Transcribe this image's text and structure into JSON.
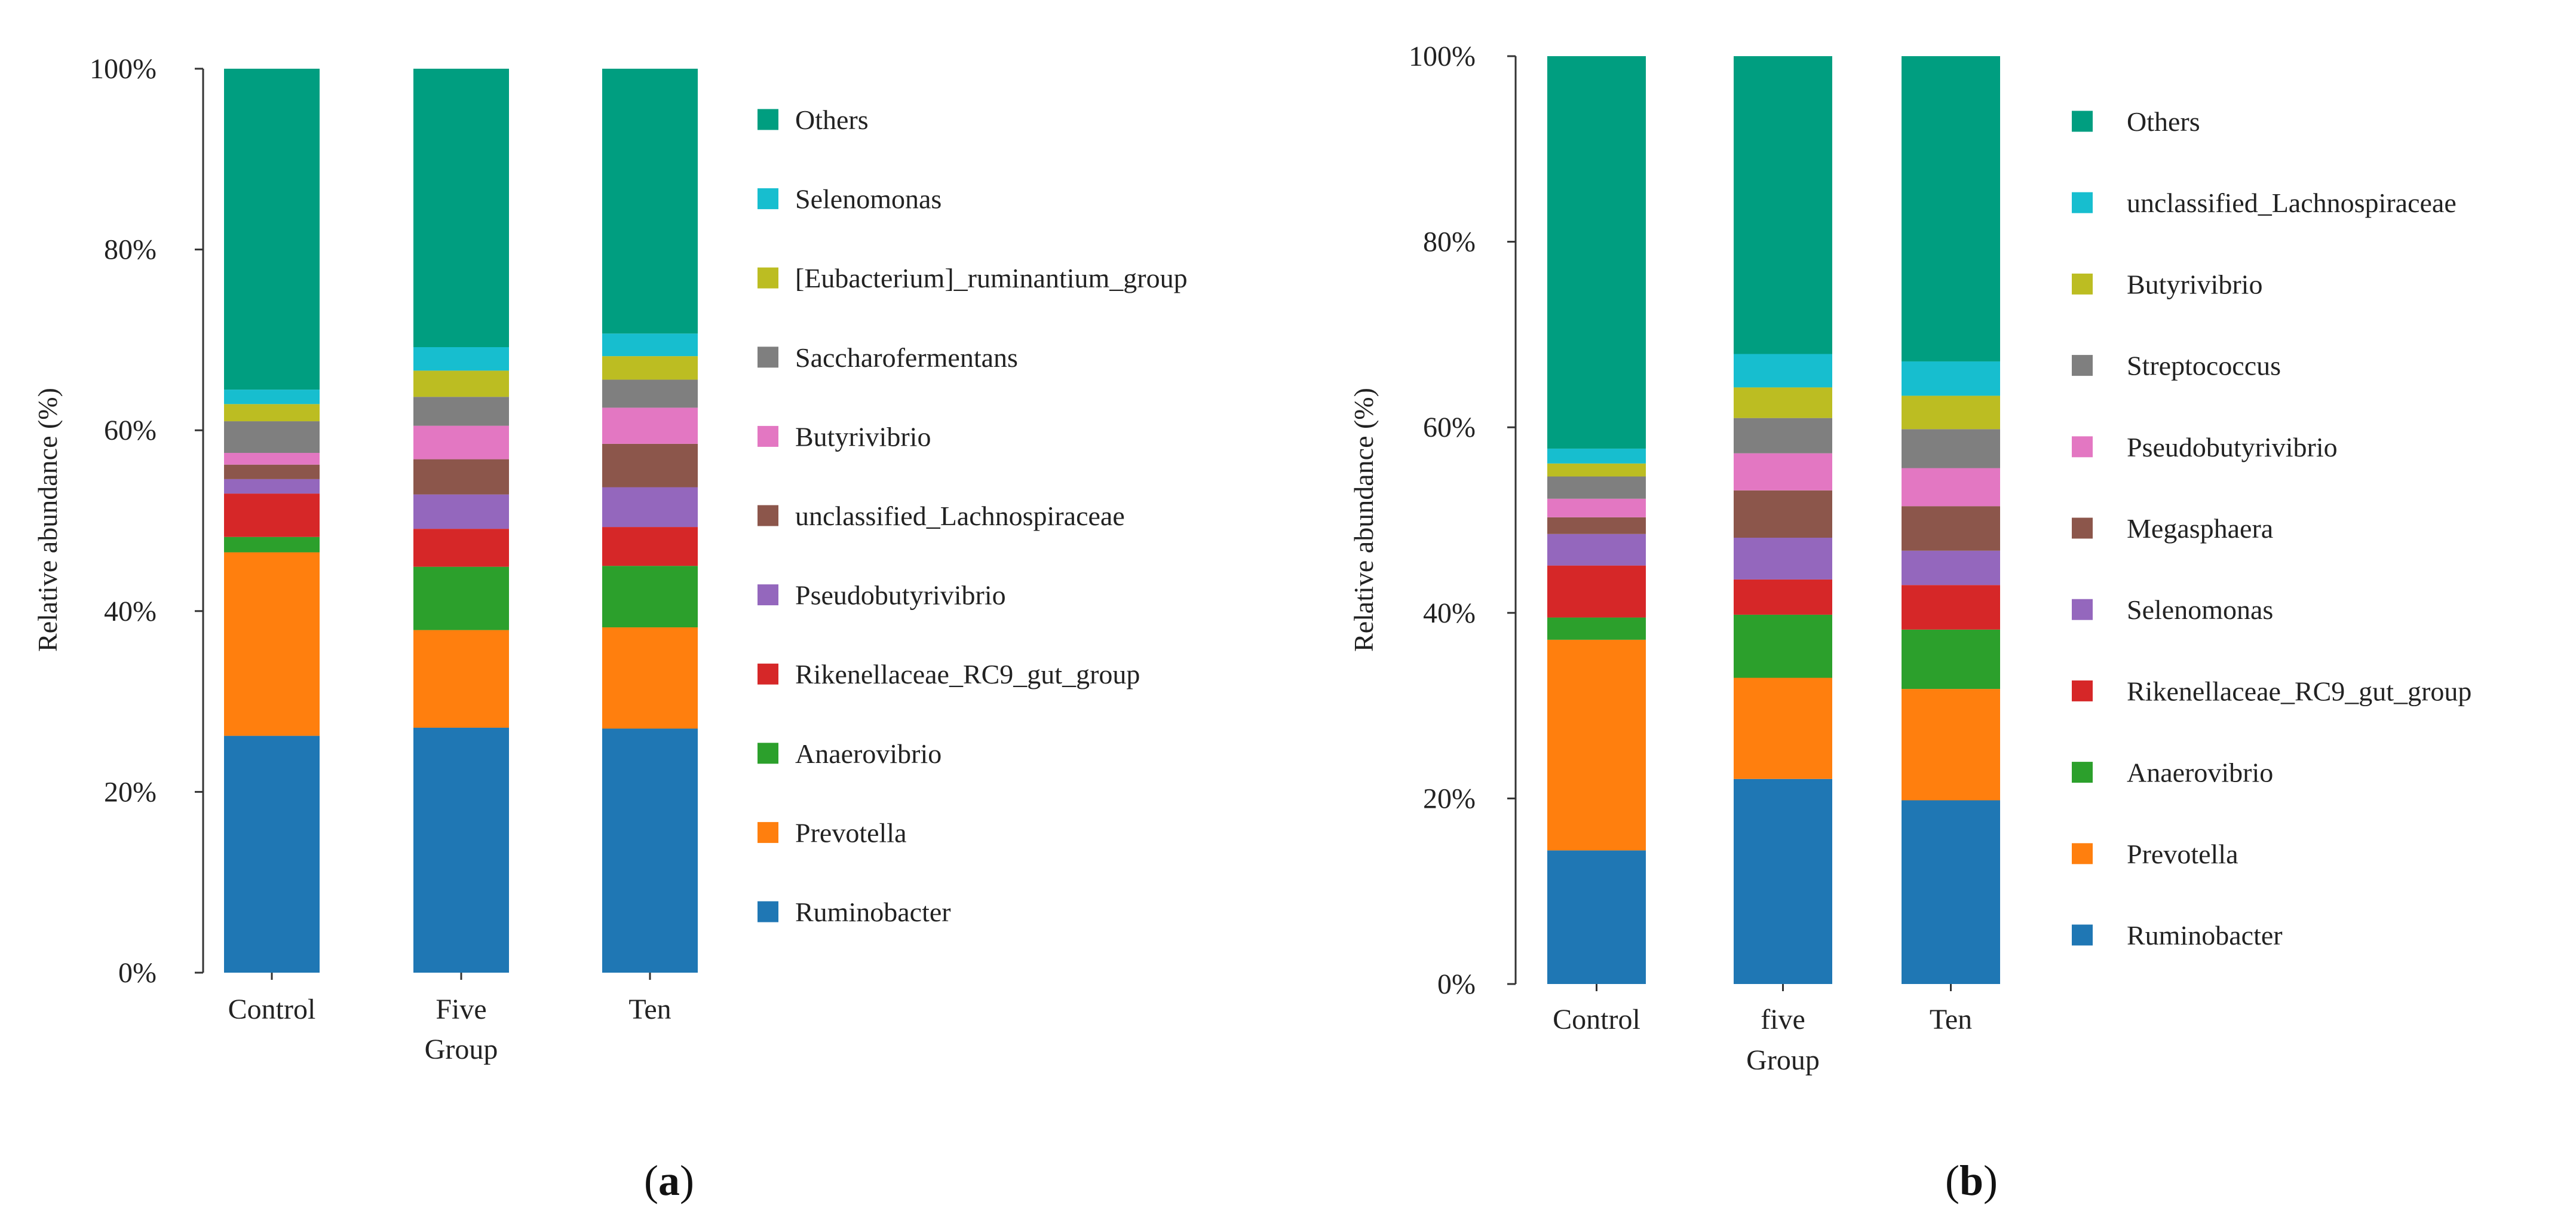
{
  "chart_data": [
    {
      "type": "bar",
      "stacked": true,
      "panel_label": "a",
      "xlabel": "Group",
      "ylabel": "Relative abundance (%)",
      "ylim": [
        0,
        100
      ],
      "y_ticks": [
        "0%",
        "20%",
        "40%",
        "60%",
        "80%",
        "100%"
      ],
      "grid": false,
      "legend_position": "right",
      "categories": [
        [
          "Control"
        ],
        [
          "Five",
          "Group"
        ],
        [
          "Ten"
        ]
      ],
      "series": [
        {
          "name": "Ruminobacter",
          "color": "#1f77b4",
          "values": [
            26.2,
            27.1,
            27.0
          ]
        },
        {
          "name": "Prevotella",
          "color": "#ff7f0e",
          "values": [
            20.3,
            10.8,
            11.2
          ]
        },
        {
          "name": "Anaerovibrio",
          "color": "#2ca02c",
          "values": [
            1.7,
            7.0,
            6.8
          ]
        },
        {
          "name": "Rikenellaceae_RC9_gut_group",
          "color": "#d62728",
          "values": [
            4.8,
            4.2,
            4.3
          ]
        },
        {
          "name": "Pseudobutyrivibrio",
          "color": "#9467bd",
          "values": [
            1.6,
            3.8,
            4.4
          ]
        },
        {
          "name": "unclassified_Lachnospiraceae",
          "color": "#8c564b",
          "values": [
            1.6,
            3.9,
            4.8
          ]
        },
        {
          "name": "Butyrivibrio",
          "color": "#e377c2",
          "values": [
            1.3,
            3.7,
            4.0
          ]
        },
        {
          "name": "Saccharofermentans",
          "color": "#7f7f7f",
          "values": [
            3.5,
            3.2,
            3.1
          ]
        },
        {
          "name": "[Eubacterium]_ruminantium_group",
          "color": "#bcbd22",
          "values": [
            1.9,
            2.9,
            2.6
          ]
        },
        {
          "name": "Selenomonas",
          "color": "#17becf",
          "values": [
            1.6,
            2.6,
            2.5
          ]
        },
        {
          "name": "Others",
          "color": "#009e80",
          "values": [
            35.5,
            30.8,
            29.3
          ]
        }
      ]
    },
    {
      "type": "bar",
      "stacked": true,
      "panel_label": "b",
      "xlabel": "Group",
      "ylabel": "Relative abundance (%)",
      "ylim": [
        0,
        100
      ],
      "y_ticks": [
        "0%",
        "20%",
        "40%",
        "60%",
        "80%",
        "100%"
      ],
      "grid": false,
      "legend_position": "right",
      "categories": [
        [
          "Control"
        ],
        [
          "five",
          "Group"
        ],
        [
          "Ten"
        ]
      ],
      "series": [
        {
          "name": "Ruminobacter",
          "color": "#1f77b4",
          "values": [
            14.4,
            22.1,
            19.8
          ]
        },
        {
          "name": "Prevotella",
          "color": "#ff7f0e",
          "values": [
            22.7,
            10.9,
            12.0
          ]
        },
        {
          "name": "Anaerovibrio",
          "color": "#2ca02c",
          "values": [
            2.4,
            6.8,
            6.4
          ]
        },
        {
          "name": "Rikenellaceae_RC9_gut_group",
          "color": "#d62728",
          "values": [
            5.6,
            3.8,
            4.8
          ]
        },
        {
          "name": "Selenomonas",
          "color": "#9467bd",
          "values": [
            3.4,
            4.5,
            3.7
          ]
        },
        {
          "name": "Megasphaera",
          "color": "#8c564b",
          "values": [
            1.8,
            5.1,
            4.8
          ]
        },
        {
          "name": "Pseudobutyrivibrio",
          "color": "#e377c2",
          "values": [
            2.0,
            4.0,
            4.1
          ]
        },
        {
          "name": "Streptococcus",
          "color": "#7f7f7f",
          "values": [
            2.4,
            3.8,
            4.2
          ]
        },
        {
          "name": "Butyrivibrio",
          "color": "#bcbd22",
          "values": [
            1.4,
            3.3,
            3.6
          ]
        },
        {
          "name": "unclassified_Lachnospiraceae",
          "color": "#17becf",
          "values": [
            1.6,
            3.6,
            3.7
          ]
        },
        {
          "name": "Others",
          "color": "#009e80",
          "values": [
            42.3,
            32.1,
            32.9
          ]
        }
      ]
    }
  ]
}
